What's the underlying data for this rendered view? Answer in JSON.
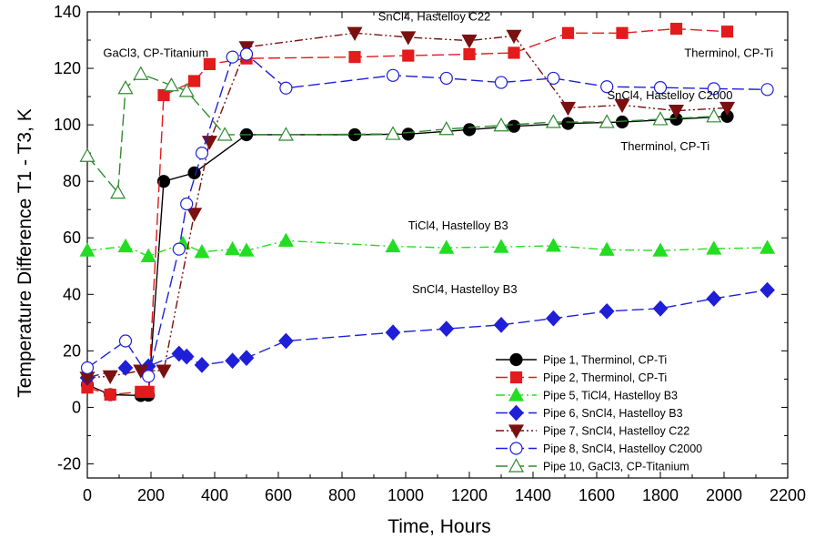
{
  "chart_data": {
    "type": "line",
    "xlabel": "Time, Hours",
    "ylabel": "Temperature Difference T1 - T3, K",
    "xlim": [
      0,
      2200
    ],
    "ylim": [
      -25,
      140
    ],
    "xticks": [
      0,
      200,
      400,
      600,
      800,
      1000,
      1200,
      1400,
      1600,
      1800,
      2000,
      2200
    ],
    "yticks": [
      -20,
      0,
      20,
      40,
      60,
      80,
      100,
      120,
      140
    ],
    "legend_position": "bottom-right",
    "grid": false,
    "series": [
      {
        "name": "Pipe 1, Therminol, CP-Ti",
        "color": "#000000",
        "marker": "circle",
        "fill": "filled",
        "dash": "solid",
        "x": [
          0,
          72,
          168,
          192,
          240,
          336,
          500,
          840,
          1008,
          1200,
          1340,
          1510,
          1680,
          1850,
          2010
        ],
        "y": [
          8,
          4.5,
          4.2,
          4.3,
          80,
          83,
          96.5,
          96.5,
          96.7,
          98.3,
          99.5,
          100.5,
          101,
          102,
          103
        ]
      },
      {
        "name": "Pipe 2, Therminol, CP-Ti",
        "color": "#e41a1c",
        "marker": "square",
        "fill": "filled",
        "dash": "longdash",
        "x": [
          0,
          72,
          168,
          192,
          240,
          336,
          384,
          500,
          840,
          1008,
          1200,
          1340,
          1510,
          1680,
          1850,
          2010
        ],
        "y": [
          7,
          4.5,
          5.5,
          5.5,
          110.5,
          115.5,
          121.5,
          123.5,
          124,
          124.5,
          125,
          125.5,
          132.5,
          132.5,
          134,
          133
        ]
      },
      {
        "name": "Pipe 5, TiCl4, Hastelloy B3",
        "color": "#22dd22",
        "marker": "triangle-up",
        "fill": "filled",
        "dash": "dashdot",
        "x": [
          0,
          120,
          192,
          300,
          360,
          456,
          500,
          624,
          960,
          1128,
          1300,
          1464,
          1632,
          1800,
          1968,
          2136
        ],
        "y": [
          55.5,
          57,
          53.5,
          58,
          55,
          56,
          55.5,
          59,
          57,
          56.5,
          56.8,
          57.2,
          55.8,
          55.5,
          56.2,
          56.5
        ]
      },
      {
        "name": "Pipe 6, SnCl4, Hastelloy B3",
        "color": "#1f1fd9",
        "marker": "diamond",
        "fill": "filled",
        "dash": "longdash",
        "x": [
          0,
          120,
          192,
          288,
          312,
          360,
          456,
          500,
          624,
          960,
          1128,
          1300,
          1464,
          1632,
          1800,
          1968,
          2136
        ],
        "y": [
          10.5,
          14,
          14.5,
          19,
          18,
          15,
          16.5,
          17.5,
          23.5,
          26.5,
          27.8,
          29.2,
          31.5,
          34,
          35,
          38.5,
          41.5
        ]
      },
      {
        "name": "Pipe 7, SnCl4, Hastelloy C22",
        "color": "#7a1010",
        "marker": "triangle-down",
        "fill": "filled",
        "dash": "dashdotdot",
        "x": [
          0,
          72,
          168,
          240,
          336,
          384,
          500,
          840,
          1008,
          1200,
          1340,
          1510,
          1680,
          1850,
          2010
        ],
        "y": [
          10.5,
          11,
          13,
          13,
          68.5,
          94,
          127.5,
          132.5,
          131,
          129.8,
          131.5,
          106,
          107,
          105,
          106
        ]
      },
      {
        "name": "Pipe 8, SnCl4, Hastelloy C2000",
        "color": "#1f1fd9",
        "marker": "circle",
        "fill": "open",
        "dash": "longdash",
        "x": [
          0,
          120,
          192,
          288,
          312,
          360,
          456,
          500,
          624,
          960,
          1128,
          1300,
          1464,
          1632,
          1800,
          1968,
          2136
        ],
        "y": [
          14,
          23.5,
          11,
          56,
          72,
          90,
          124,
          125,
          113,
          117.5,
          116.5,
          115,
          116.5,
          113.5,
          113.2,
          112.8,
          112.5
        ]
      },
      {
        "name": "Pipe 10, GaCl3, CP-Titanium",
        "color": "#2e8b2e",
        "marker": "triangle-up",
        "fill": "open",
        "dash": "longdash",
        "x": [
          0,
          96,
          120,
          168,
          264,
          312,
          432,
          624,
          960,
          1128,
          1300,
          1464,
          1632,
          1800,
          1968
        ],
        "y": [
          89,
          76,
          113,
          118,
          114,
          112,
          96.5,
          96.5,
          96.8,
          98.5,
          99.8,
          101,
          101,
          102,
          103
        ]
      }
    ],
    "annotations": [
      {
        "text": "SnCl4, Hastelloy C22",
        "x": 1090,
        "y": 137
      },
      {
        "text": "GaCl3, CP-Titanium",
        "x": 215,
        "y": 124
      },
      {
        "text": "Therminol, CP-Ti",
        "x": 2015,
        "y": 124
      },
      {
        "text": "SnCl4, Hastelloy C2000",
        "x": 1830,
        "y": 109
      },
      {
        "text": "Therminol, CP-Ti",
        "x": 1815,
        "y": 91
      },
      {
        "text": "TiCl4, Hastelloy B3",
        "x": 1165,
        "y": 63
      },
      {
        "text": "SnCl4, Hastelloy B3",
        "x": 1185,
        "y": 40.5
      }
    ]
  }
}
